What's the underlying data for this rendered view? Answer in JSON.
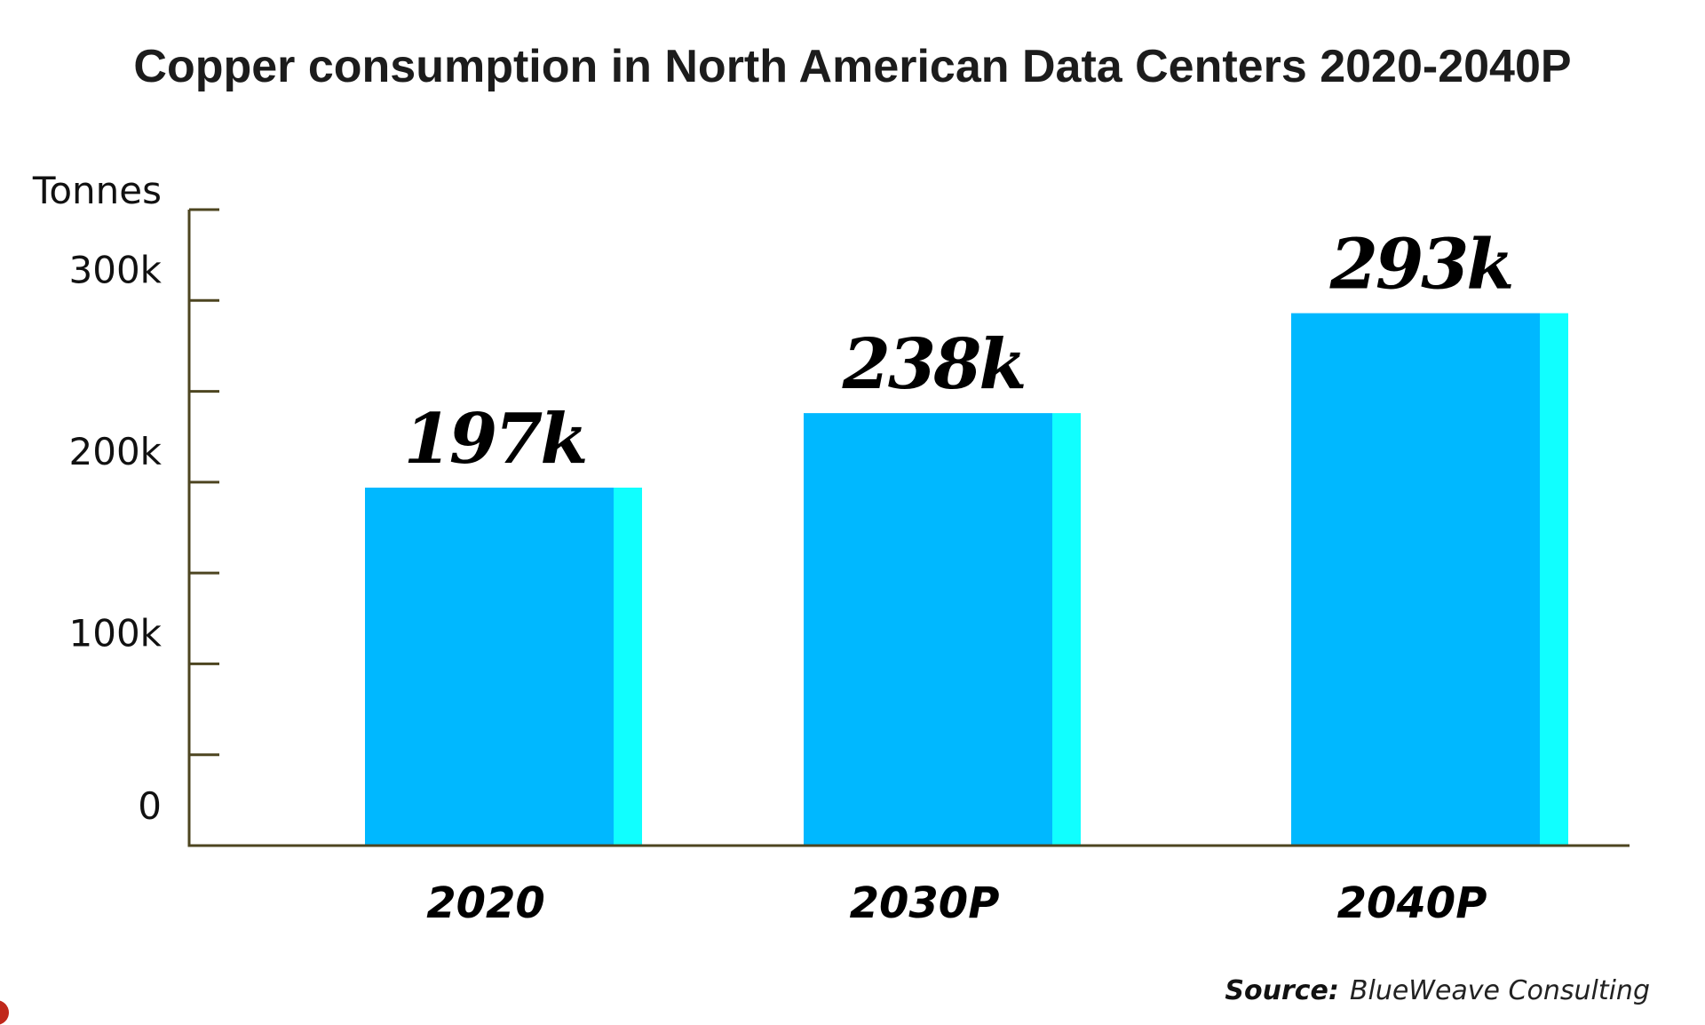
{
  "chart_data": {
    "type": "bar",
    "title": "Copper consumption in North American Data Centers 2020-2040P",
    "xlabel": "",
    "ylabel": "Tonnes",
    "categories": [
      "2020",
      "2030P",
      "2040P"
    ],
    "values": [
      197000,
      238000,
      293000
    ],
    "data_labels": [
      "197k",
      "238k",
      "293k"
    ],
    "ylim": [
      0,
      350000
    ],
    "yticks": [
      0,
      50000,
      100000,
      150000,
      200000,
      250000,
      300000,
      350000
    ],
    "ytick_labels": [
      {
        "value": 0,
        "label": "0"
      },
      {
        "value": 100000,
        "label": "100k"
      },
      {
        "value": 200000,
        "label": "200k"
      },
      {
        "value": 300000,
        "label": "300k"
      }
    ],
    "grid": false,
    "legend": "none",
    "colors": {
      "bar": "#00B8FF",
      "bar_side": "#10FFFF",
      "axis": "#4D4520"
    },
    "source_label": "Source:",
    "source_text": "BlueWeave Consulting"
  }
}
